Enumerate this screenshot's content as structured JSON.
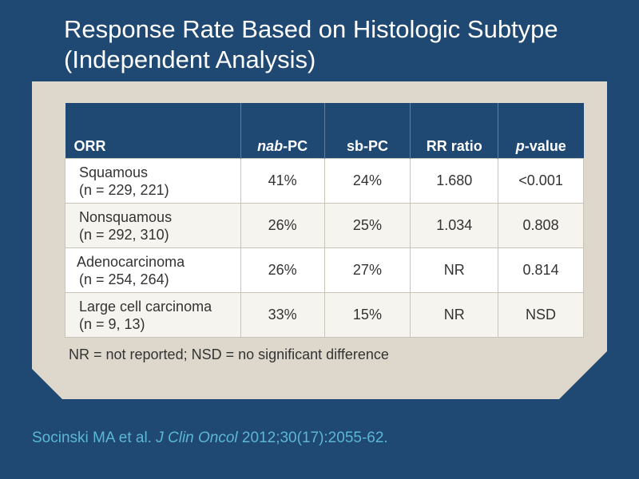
{
  "title": {
    "line1": "Response Rate Based on Histologic Subtype",
    "line2": "(Independent Analysis)"
  },
  "table": {
    "headers": {
      "orr": "ORR",
      "nab_italic": "nab",
      "nab_rest": "-PC",
      "sb": "sb-PC",
      "rr": "RR ratio",
      "p_italic": "p",
      "p_rest": "-value"
    },
    "rows": [
      {
        "name": "Squamous",
        "n": "(n = 229, 221)",
        "nab": "41%",
        "sb": "24%",
        "rr": "1.680",
        "p": "<0.001"
      },
      {
        "name": "Nonsquamous",
        "n": "(n = 292, 310)",
        "nab": "26%",
        "sb": "25%",
        "rr": "1.034",
        "p": "0.808"
      },
      {
        "name": "Adenocarcinoma",
        "n": "(n = 254, 264)",
        "nab": "26%",
        "sb": "27%",
        "rr": "NR",
        "p": "0.814"
      },
      {
        "name": "Large cell carcinoma",
        "n": "(n = 9, 13)",
        "nab": "33%",
        "sb": "15%",
        "rr": "NR",
        "p": "NSD"
      }
    ]
  },
  "footnote": "NR = not reported; NSD = no significant difference",
  "citation": {
    "authors": "Socinski MA et al. ",
    "journal": "J Clin Oncol",
    "details": " 2012;30(17):2055-62."
  },
  "colors": {
    "background": "#1f4872",
    "panel": "#ddd8cb",
    "citation": "#5cb6d6"
  }
}
